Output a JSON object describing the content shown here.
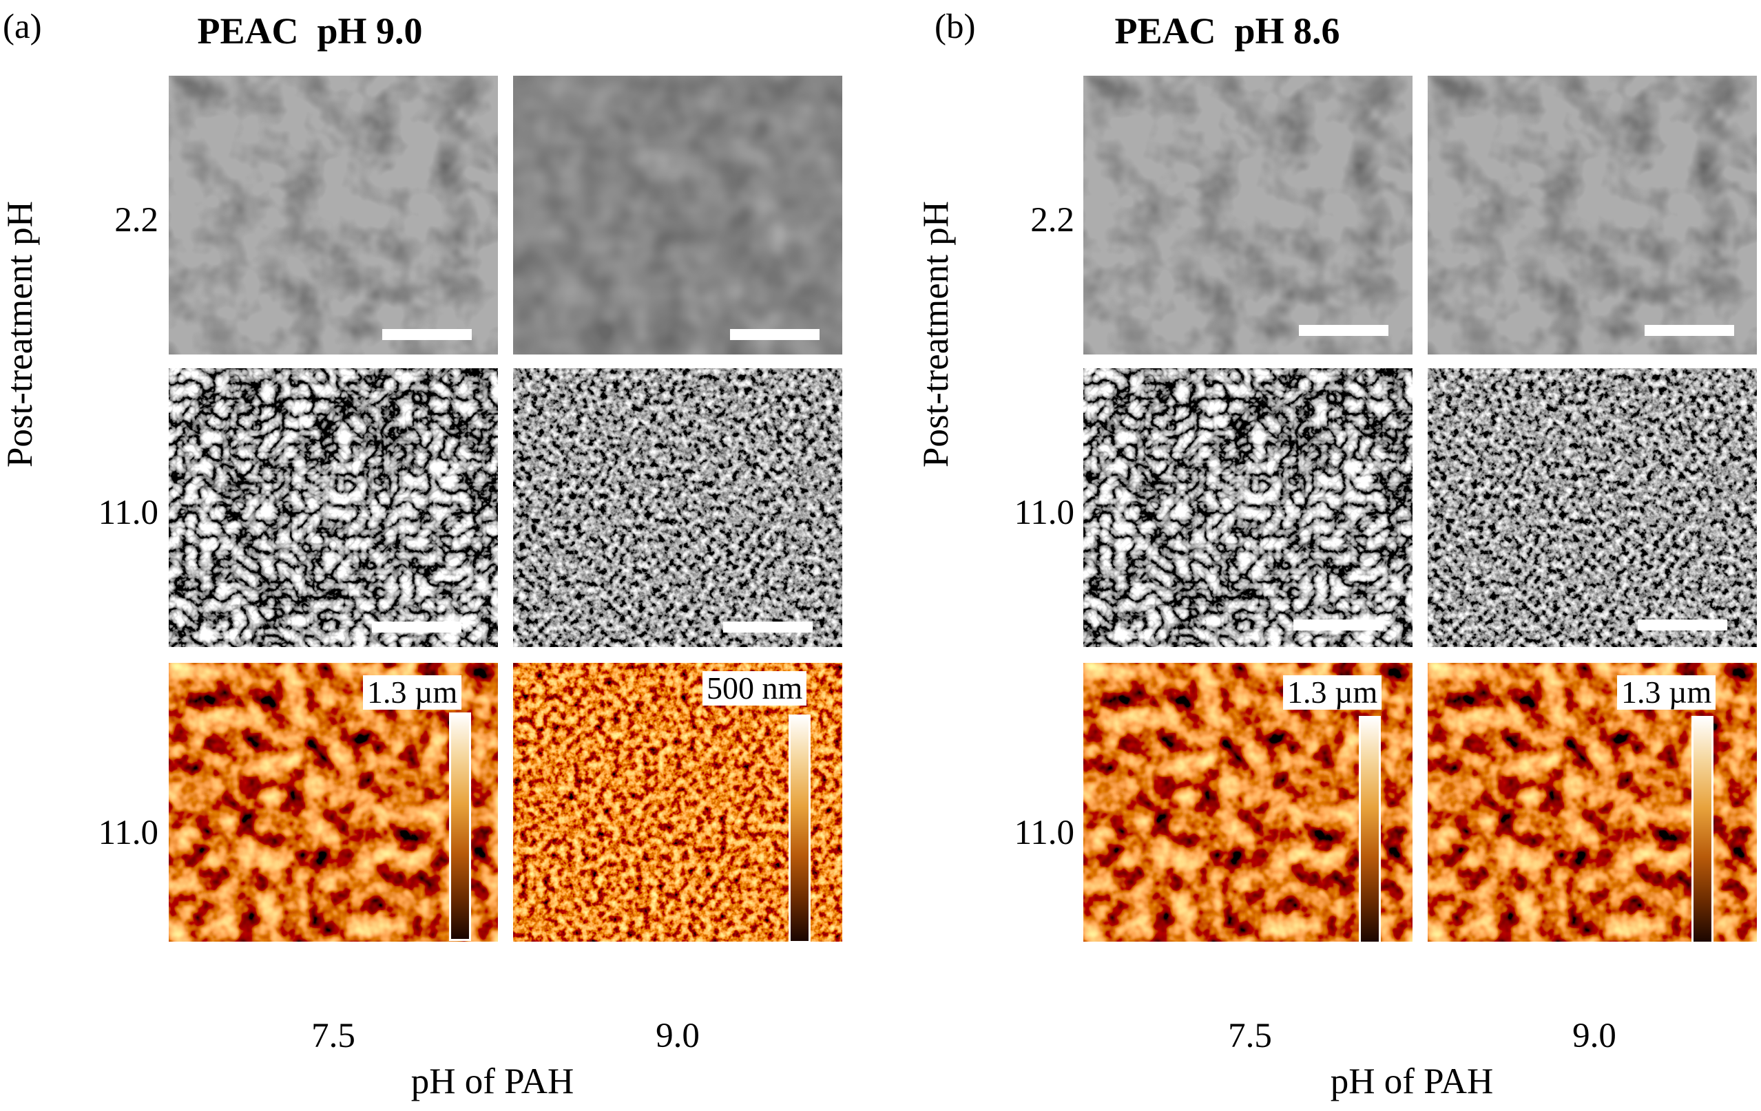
{
  "panels": [
    {
      "letter": "(a)",
      "title": "PEAC  pH 9.0",
      "row_labels": [
        "2.2",
        "11.0",
        "11.0"
      ],
      "col_labels": [
        "7.5",
        "9.0"
      ],
      "xaxis_label": "pH of PAH",
      "yaxis_label": "Post-treatment pH",
      "afm": [
        {
          "max": "1.3 µm",
          "min": "0"
        },
        {
          "max": "500 nm",
          "min": "0"
        }
      ]
    },
    {
      "letter": "(b)",
      "title": "PEAC  pH 8.6",
      "row_labels": [
        "2.2",
        "11.0",
        "11.0"
      ],
      "col_labels": [
        "7.5",
        "9.0"
      ],
      "xaxis_label": "pH of PAH",
      "yaxis_label": "Post-treatment pH",
      "afm": [
        {
          "max": "1.3 µm",
          "min": "0"
        },
        {
          "max": "1.3 µm",
          "min": "0"
        }
      ]
    }
  ]
}
